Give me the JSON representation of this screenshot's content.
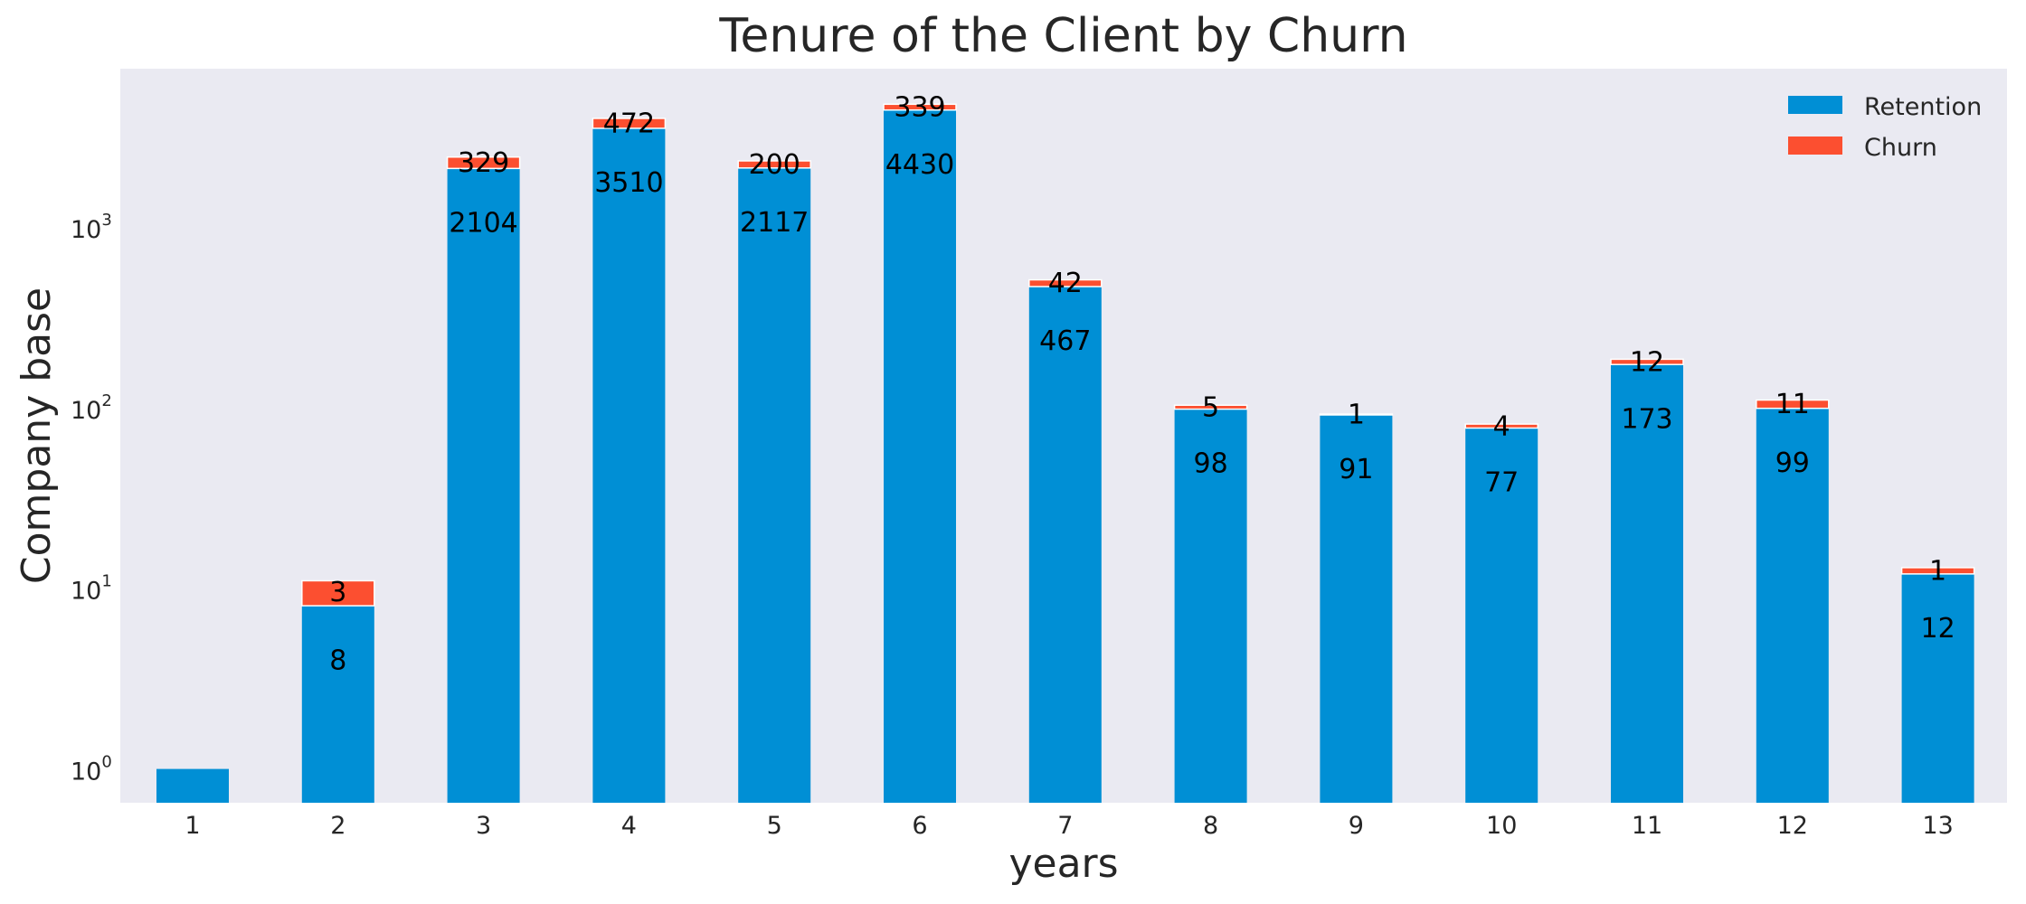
{
  "chart_data": {
    "type": "bar",
    "stacked": true,
    "title": "Tenure of the Client by Churn",
    "xlabel": "years",
    "ylabel": "Company base",
    "yscale": "log",
    "ylim": [
      0.65,
      7500
    ],
    "y_ticks": [
      {
        "value": 1,
        "base": "10",
        "exp": "0"
      },
      {
        "value": 10,
        "base": "10",
        "exp": "1"
      },
      {
        "value": 100,
        "base": "10",
        "exp": "2"
      },
      {
        "value": 1000,
        "base": "10",
        "exp": "3"
      }
    ],
    "grid": false,
    "legend_position": "top-right",
    "categories": [
      "1",
      "2",
      "3",
      "4",
      "5",
      "6",
      "7",
      "8",
      "9",
      "10",
      "11",
      "12",
      "13"
    ],
    "series": [
      {
        "name": "Retention",
        "color": "#008fd5",
        "values": [
          1,
          8,
          2104,
          3510,
          2117,
          4430,
          467,
          98,
          91,
          77,
          173,
          99,
          12
        ],
        "labels": [
          "",
          "8",
          "2104",
          "3510",
          "2117",
          "4430",
          "467",
          "98",
          "91",
          "77",
          "173",
          "99",
          "12"
        ]
      },
      {
        "name": "Churn",
        "color": "#fc4f30",
        "values": [
          0,
          3,
          329,
          472,
          200,
          339,
          42,
          5,
          1,
          4,
          12,
          11,
          1
        ],
        "labels": [
          "",
          "3",
          "329",
          "472",
          "200",
          "339",
          "42",
          "5",
          "1",
          "4",
          "12",
          "11",
          "1"
        ]
      }
    ]
  },
  "colors": {
    "plot_background": "#eaeaf2",
    "retention": "#008fd5",
    "churn": "#fc4f30"
  }
}
